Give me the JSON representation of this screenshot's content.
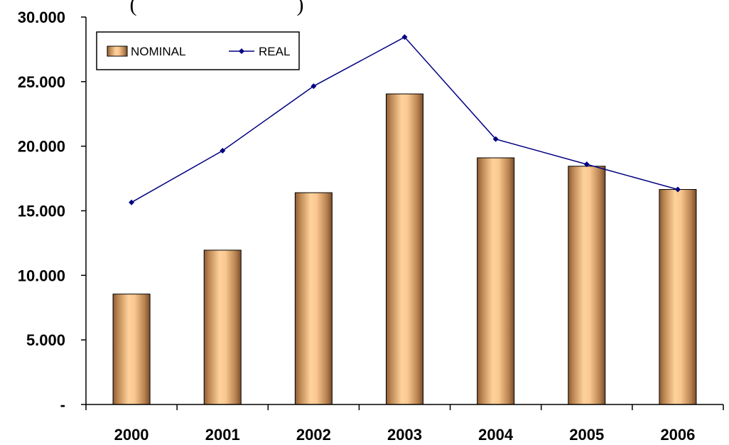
{
  "chart_data": {
    "type": "bar",
    "title": "(                              )",
    "categories": [
      "2000",
      "2001",
      "2002",
      "2003",
      "2004",
      "2005",
      "2006"
    ],
    "series": [
      {
        "name": "NOMINAL",
        "type": "bar",
        "values": [
          8550,
          11950,
          16400,
          24050,
          19100,
          18450,
          16650
        ],
        "color": "#f9c98f"
      },
      {
        "name": "REAL",
        "type": "line",
        "values": [
          15650,
          19650,
          24650,
          28450,
          20550,
          18600,
          16650
        ],
        "color": "#000080"
      }
    ],
    "ylim": [
      0,
      30000
    ],
    "yticks": [
      0,
      5000,
      10000,
      15000,
      20000,
      25000,
      30000
    ],
    "ytick_labels": [
      "-",
      "5.000",
      "10.000",
      "15.000",
      "20.000",
      "25.000",
      "30.000"
    ],
    "xlabel": "",
    "ylabel": "",
    "grid": false,
    "legend_position": "top-left",
    "legend_border": true
  }
}
